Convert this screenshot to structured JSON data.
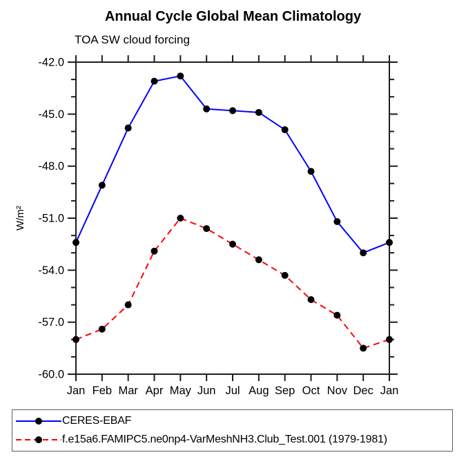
{
  "chart_data": {
    "type": "line",
    "title": "Annual Cycle Global Mean Climatology",
    "subtitle": "TOA SW cloud forcing",
    "ylabel": "W/m²",
    "xlabel": "",
    "categories": [
      "Jan",
      "Feb",
      "Mar",
      "Apr",
      "May",
      "Jun",
      "Jul",
      "Aug",
      "Sep",
      "Oct",
      "Nov",
      "Dec",
      "Jan"
    ],
    "ylim": [
      -60.0,
      -42.0
    ],
    "ytick_major_interval": 3.0,
    "ytick_minor_interval": 1.0,
    "ytick_labels": [
      "-42.0",
      "-45.0",
      "-48.0",
      "-51.0",
      "-54.0",
      "-57.0",
      "-60.0"
    ],
    "grid": false,
    "legend_position": "bottom-outside-box",
    "axis_color": "#1c1c1c",
    "marker_color": "#000000",
    "series": [
      {
        "name": "CERES-EBAF",
        "color": "#0000ff",
        "style": "solid",
        "marker": "filled-circle",
        "values": [
          -52.4,
          -49.1,
          -45.8,
          -43.1,
          -42.8,
          -44.7,
          -44.8,
          -44.9,
          -45.9,
          -48.3,
          -51.2,
          -53.0,
          -52.4
        ]
      },
      {
        "name": "f.e15a6.FAMIPC5.ne0np4-VarMeshNH3.Club_Test.001 (1979-1981)",
        "color": "#ff0000",
        "style": "dashed",
        "marker": "filled-circle",
        "values": [
          -58.0,
          -57.4,
          -56.0,
          -52.9,
          -51.0,
          -51.6,
          -52.5,
          -53.4,
          -54.3,
          -55.7,
          -56.6,
          -58.5,
          -58.0
        ]
      }
    ]
  }
}
